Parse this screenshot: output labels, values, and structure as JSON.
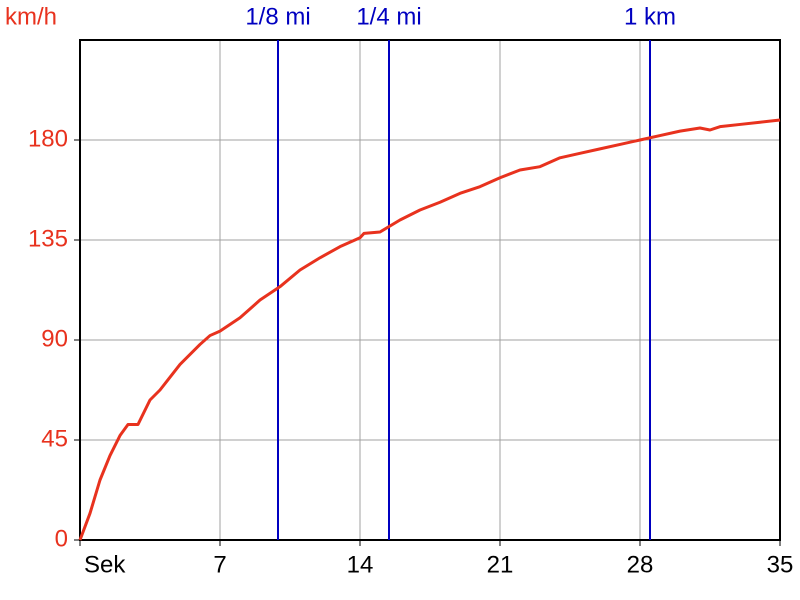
{
  "chart_data": {
    "type": "line",
    "y_label": "km/h",
    "x": [
      0,
      0.5,
      1,
      1.5,
      2,
      2.4,
      2.9,
      3.5,
      4,
      5,
      6,
      6.5,
      7,
      8,
      9,
      10,
      11,
      12,
      13,
      14,
      14.2,
      15,
      16,
      17,
      18,
      19,
      20,
      21,
      22,
      23,
      24,
      25,
      26,
      27,
      28,
      29,
      30,
      31,
      31.5,
      32,
      33,
      34,
      35
    ],
    "series": [
      {
        "name": "km/h",
        "color": "#e8321e",
        "values": [
          0,
          12,
          27,
          38,
          47,
          52,
          52,
          63,
          67.5,
          79,
          88,
          92,
          94,
          100,
          108,
          114,
          121.5,
          127,
          132,
          136,
          138,
          138.6,
          144,
          148.5,
          152,
          156,
          159,
          163,
          166.5,
          168,
          172,
          174,
          176,
          178,
          180,
          182,
          184,
          185.4,
          184.5,
          186,
          187,
          188,
          189
        ]
      }
    ],
    "xlim": [
      0,
      35
    ],
    "xticks": [
      {
        "value": 0,
        "label": "Sek"
      },
      7,
      14,
      21,
      28,
      35
    ],
    "ylim": [
      0,
      225
    ],
    "yticks": [
      0,
      45,
      90,
      135,
      180
    ],
    "grid": true,
    "tick_color_y": "#e8321e",
    "marker_color": "#0000c0",
    "markers": [
      {
        "label": "1/8 mi",
        "x": 9.9
      },
      {
        "label": "1/4 mi",
        "x": 15.45
      },
      {
        "label": "1 km",
        "x": 28.5
      }
    ]
  }
}
